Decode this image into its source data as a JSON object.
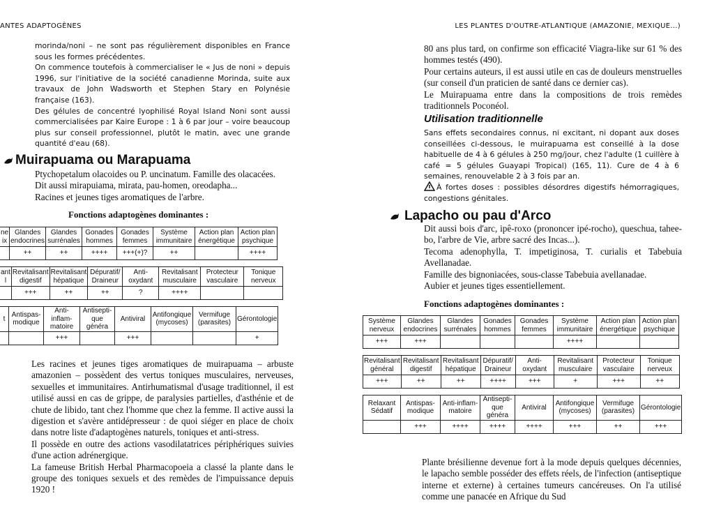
{
  "left_page": {
    "running_head": "ANTES ADAPTOGÈNES",
    "paragraphs": [
      "morinda/noni – ne sont pas régulièrement disponibles en France sous les formes précédentes.",
      "On commence toutefois à commercialiser le « Jus de noni » depuis 1996, sur l'initiative de la société canadienne Morinda, suite aux travaux de John Wadsworth et Stephen Stary en Polynésie française (163).",
      "Des gélules de concentré lyophilisé Royal Island Noni sont aussi commercialisées par Kaire Europe : 1 à 6 par jour – voire beaucoup plus sur conseil professionnel, plutôt le matin, avec une grande quantité d'eau (68)."
    ],
    "heading": "Muirapuama ou Marapuama",
    "botany": [
      "Ptychopetalum olacoides ou P. uncinatum. Famille des olacacées.",
      "Dit aussi mirapuiama, mirata, pau-homen, oreodapha...",
      "Racines et jeunes tiges aromatiques de l'arbre."
    ],
    "table_title": "Fonctions adaptogènes dominantes :",
    "table": [
      {
        "headers": [
          "ne ix",
          "Glandes endocrines",
          "Glandes surrénales",
          "Gonades hommes",
          "Gonades femmes",
          "Système immunitaire",
          "Action plan énergétique",
          "Action plan psychique"
        ],
        "values": [
          null,
          "++",
          "++",
          "++++",
          "+++(+)?",
          "++",
          null,
          "++++"
        ]
      },
      {
        "headers": [
          "ant l",
          "Revitalisant digestif",
          "Revitalisant hépatique",
          "Dépuratif/ Draineur",
          "Anti-oxydant",
          "Revitalisant musculaire",
          "Protecteur vasculaire",
          "Tonique nerveux"
        ],
        "values": [
          null,
          "+++",
          "++",
          "++",
          "?",
          "++++",
          null,
          null
        ]
      },
      {
        "headers": [
          "t",
          "Antispas-modique",
          "Anti-inflam-matoire",
          "Antisepti-que généra",
          "Antiviral",
          "Antifongique (mycoses)",
          "Vermifuge (parasites)",
          "Gérontologie"
        ],
        "values": [
          null,
          null,
          "+++",
          null,
          "+++",
          null,
          null,
          "+"
        ]
      }
    ],
    "body": [
      "Les racines et jeunes tiges aromatiques de muirapuama – arbuste amazonien – possèdent des vertus toniques musculaires, nerveuses, sexuelles et immunitaires. Antirhumatismal d'usage traditionnel, il est utilisé aussi en cas de grippe, de paralysies partielles, d'asthénie et de chute de libido, tant chez l'homme que chez la femme. Il active aussi la digestion et s'avère antidépresseur : de quoi siéger en place de choix dans notre liste d'adaptogènes naturels, toniques et anti-stress.",
      "Il possède en outre des actions vasodilatatrices périphériques suivies d'une action adrénergique.",
      "La fameuse British Herbal Pharmacopoeia a classé la plante dans le groupe des toniques sexuels et des remèdes de l'impuissance depuis 1920 !"
    ]
  },
  "right_page": {
    "running_head": "LES PLANTES D'OUTRE-ATLANTIQUE (AMAZONIE, MEXIQUE...)",
    "paragraphs": [
      "80 ans plus tard, on confirme son efficacité Viagra-like sur 61 % des hommes testés (490).",
      "Pour certains auteurs, il est aussi utile en cas de douleurs menstruelles (sur conseil d'un praticien de santé dans ce dernier cas).",
      "Le Muirapuama entre dans la compositions de trois remèdes traditionnels Poconéol."
    ],
    "subheading": "Utilisation traditionnelle",
    "usage": "Sans effets secondaires connus, ni excitant, ni dopant aux doses conseillées ci-dessous, le muirapuama est conseillé à la dose habituelle de 4 à 6 gélules à 250 mg/jour, chez l'adulte (1 cuillère à café = 5 gélules Guayapi Tropical) (165, 11). Cure de 4 à 6 semaines, renouvelable 2 à 3 fois par an.",
    "warning": "À fortes doses : possibles désordres digestifs hémorragiques, congestions génitales.",
    "heading": "Lapacho ou pau d'Arco",
    "botany": [
      "Dit aussi bois d'arc, ipê-roxo (prononcer ipé-rocho), queschua, tahee-bo, l'arbre de Vie, arbre sacré des Incas...).",
      "Tecoma adenophylla, T. impetiginosa, T. curialis et Tabebuia Avellanadae.",
      "Famille des bignoniacées, sous-classe Tabebuia avellanadae.",
      "Aubier et jeunes tiges essentiellement."
    ],
    "table_title": "Fonctions adaptogènes dominantes :",
    "table": [
      {
        "headers": [
          "Système nerveux",
          "Glandes endocrines",
          "Glandes surrénales",
          "Gonades hommes",
          "Gonades femmes",
          "Système immunitaire",
          "Action plan énergétique",
          "Action plan psychique"
        ],
        "values": [
          "+++",
          "+++",
          null,
          null,
          null,
          "++++",
          null,
          null
        ]
      },
      {
        "headers": [
          "Revitalisant général",
          "Revitalisant digestif",
          "Revitalisant hépatique",
          "Dépuratif/ Draineur",
          "Anti-oxydant",
          "Revitalisant musculaire",
          "Protecteur vasculaire",
          "Tonique nerveux"
        ],
        "values": [
          "+++",
          "++",
          "++",
          "++++",
          "+++",
          "+",
          "+++",
          "++"
        ]
      },
      {
        "headers": [
          "Relaxant Sédatif",
          "Antispas-modique",
          "Anti-inflam-matoire",
          "Antisepti-que généra",
          "Antiviral",
          "Antifongique (mycoses)",
          "Vermifuge (parasites)",
          "Gérontologie"
        ],
        "values": [
          null,
          "+++",
          "++++",
          "++++",
          "++++",
          "+++",
          "++",
          "+++"
        ]
      }
    ],
    "body": [
      "Plante brésilienne devenue fort à la mode depuis quelques décennies, le lapacho semble posséder des effets réels, de l'infection (antiseptique interne et externe) à certaines tumeurs cancéreuses. On l'a utilisé comme une panacée en Afrique du Sud"
    ]
  }
}
